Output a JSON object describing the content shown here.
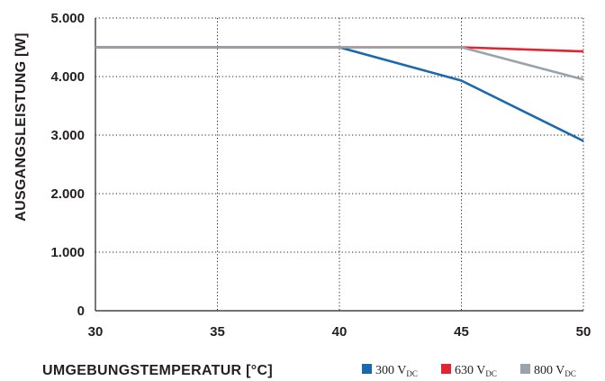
{
  "chart_data": {
    "type": "line",
    "xlabel": "UMGEBUNGSTEMPERATUR [°C]",
    "ylabel": "AUSGANGSLEISTUNG [W]",
    "xlim": [
      30,
      50
    ],
    "ylim": [
      0,
      5000
    ],
    "x_ticks": [
      30,
      35,
      40,
      45,
      50
    ],
    "x_tick_labels": [
      "30",
      "35",
      "40",
      "45",
      "50"
    ],
    "y_ticks": [
      0,
      1000,
      2000,
      3000,
      4000,
      5000
    ],
    "y_tick_labels": [
      "0",
      "1.000",
      "2.000",
      "3.000",
      "4.000",
      "5.000"
    ],
    "grid": "dotted",
    "legend_position": "bottom-right",
    "series": [
      {
        "label": "300 V",
        "subscript": "DC",
        "color": "#1a68ad",
        "x": [
          30,
          40,
          45,
          50
        ],
        "y": [
          4500,
          4500,
          3930,
          2900
        ]
      },
      {
        "label": "630 V",
        "subscript": "DC",
        "color": "#e32232",
        "x": [
          30,
          45,
          50
        ],
        "y": [
          4500,
          4500,
          4430
        ]
      },
      {
        "label": "800 V",
        "subscript": "DC",
        "color": "#9aa3ab",
        "x": [
          30,
          45,
          50
        ],
        "y": [
          4500,
          4500,
          3950
        ]
      }
    ]
  }
}
